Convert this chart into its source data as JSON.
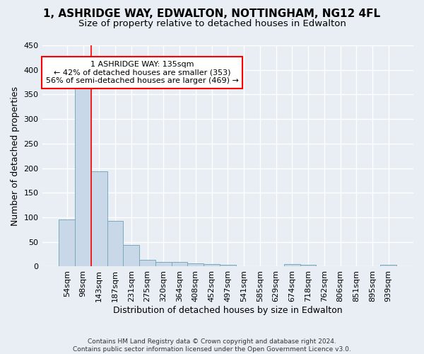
{
  "title1": "1, ASHRIDGE WAY, EDWALTON, NOTTINGHAM, NG12 4FL",
  "title2": "Size of property relative to detached houses in Edwalton",
  "xlabel": "Distribution of detached houses by size in Edwalton",
  "ylabel": "Number of detached properties",
  "footnote": "Contains HM Land Registry data © Crown copyright and database right 2024.\nContains public sector information licensed under the Open Government Licence v3.0.",
  "categories": [
    "54sqm",
    "98sqm",
    "143sqm",
    "187sqm",
    "231sqm",
    "275sqm",
    "320sqm",
    "364sqm",
    "408sqm",
    "452sqm",
    "497sqm",
    "541sqm",
    "585sqm",
    "629sqm",
    "674sqm",
    "718sqm",
    "762sqm",
    "806sqm",
    "851sqm",
    "895sqm",
    "939sqm"
  ],
  "values": [
    95,
    362,
    193,
    93,
    44,
    14,
    10,
    10,
    6,
    5,
    3,
    0,
    0,
    0,
    5,
    4,
    0,
    0,
    0,
    0,
    3
  ],
  "bar_color": "#c8d8e8",
  "bar_edge_color": "#7aaabb",
  "red_line_x": 1.5,
  "annotation_line1": "1 ASHRIDGE WAY: 135sqm",
  "annotation_line2": "← 42% of detached houses are smaller (353)",
  "annotation_line3": "56% of semi-detached houses are larger (469) →",
  "annotation_box_color": "white",
  "annotation_box_edge_color": "red",
  "ylim": [
    0,
    450
  ],
  "yticks": [
    0,
    50,
    100,
    150,
    200,
    250,
    300,
    350,
    400,
    450
  ],
  "background_color": "#e8eef4",
  "grid_color": "#ffffff",
  "title1_fontsize": 11,
  "title2_fontsize": 9.5,
  "xlabel_fontsize": 9,
  "ylabel_fontsize": 9,
  "tick_fontsize": 8,
  "annot_fontsize": 8
}
